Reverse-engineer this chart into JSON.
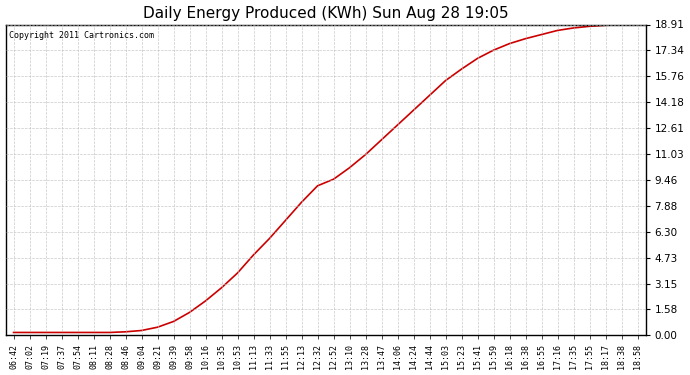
{
  "title": "Daily Energy Produced (KWh) Sun Aug 28 19:05",
  "copyright_text": "Copyright 2011 Cartronics.com",
  "line_color": "#cc0000",
  "bg_color": "#ffffff",
  "plot_bg_color": "#ffffff",
  "grid_color": "#bbbbbb",
  "y_ticks": [
    0.0,
    1.58,
    3.15,
    4.73,
    6.3,
    7.88,
    9.46,
    11.03,
    12.61,
    14.18,
    15.76,
    17.34,
    18.91
  ],
  "x_labels": [
    "06:42",
    "07:02",
    "07:19",
    "07:37",
    "07:54",
    "08:11",
    "08:28",
    "08:46",
    "09:04",
    "09:21",
    "09:39",
    "09:58",
    "10:16",
    "10:35",
    "10:53",
    "11:13",
    "11:33",
    "11:55",
    "12:13",
    "12:32",
    "12:52",
    "13:10",
    "13:28",
    "13:47",
    "14:06",
    "14:24",
    "14:44",
    "15:03",
    "15:23",
    "15:41",
    "15:59",
    "16:18",
    "16:38",
    "16:55",
    "17:16",
    "17:35",
    "17:55",
    "18:17",
    "18:38",
    "18:58"
  ],
  "y_values": [
    0.18,
    0.18,
    0.18,
    0.18,
    0.18,
    0.18,
    0.18,
    0.22,
    0.3,
    0.5,
    0.85,
    1.4,
    2.1,
    2.9,
    3.8,
    4.9,
    5.9,
    7.0,
    8.1,
    9.1,
    9.5,
    10.2,
    11.0,
    11.9,
    12.8,
    13.7,
    14.6,
    15.5,
    16.2,
    16.85,
    17.35,
    17.75,
    18.05,
    18.3,
    18.55,
    18.7,
    18.8,
    18.86,
    18.89,
    18.91
  ],
  "y_max": 18.91,
  "y_min": 0.0
}
